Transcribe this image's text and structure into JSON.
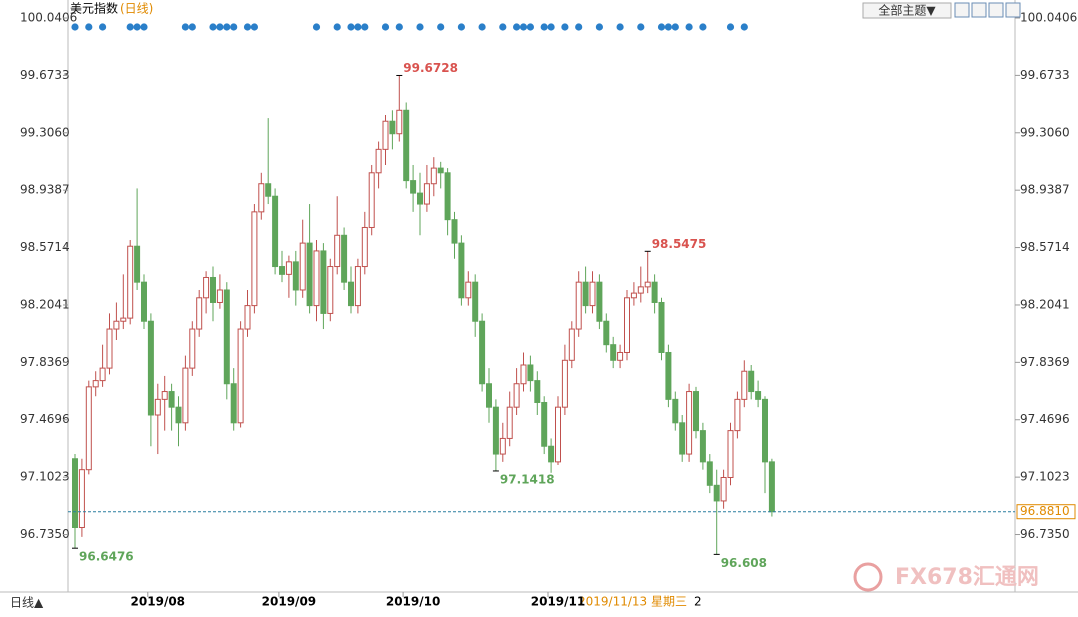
{
  "chart_data": {
    "type": "candlestick",
    "title": "美元指数",
    "subtitle": "(日线)",
    "theme_button": "全部主题▼",
    "period_button": "日线▲",
    "cursor_date": "2019/11/13 星期三",
    "cursor_extra": "2",
    "watermark": "FX678汇通网",
    "last_price_label": "96.8810",
    "up_color": "#c0504d",
    "down_color": "#5fa55a",
    "ylim": [
      96.38,
      100.0406
    ],
    "yticks": [
      {
        "value": 96.735,
        "label": "96.7350"
      },
      97.1023,
      97.4696,
      97.8369,
      98.2041,
      98.5714,
      98.9387,
      {
        "value": 99.306,
        "label": "99.3060"
      },
      99.6733,
      100.0406
    ],
    "categories": [
      null,
      null,
      null,
      null,
      null,
      null,
      null,
      null,
      null,
      null,
      null,
      null,
      "2019/08",
      null,
      null,
      null,
      null,
      null,
      null,
      null,
      null,
      null,
      null,
      null,
      null,
      null,
      null,
      null,
      null,
      null,
      null,
      "2019/09",
      null,
      null,
      null,
      null,
      null,
      null,
      null,
      null,
      null,
      null,
      null,
      null,
      null,
      null,
      null,
      null,
      null,
      "2019/10",
      null,
      null,
      null,
      null,
      null,
      null,
      null,
      null,
      null,
      null,
      null,
      null,
      null,
      null,
      null,
      null,
      null,
      null,
      null,
      null,
      "2019/11",
      null,
      null,
      null,
      null,
      null,
      null,
      null,
      null,
      null,
      null,
      null,
      null,
      null,
      null,
      null,
      null,
      null,
      null,
      null,
      null,
      null,
      null,
      null,
      null,
      null,
      null,
      null
    ],
    "candles": [
      [
        97.22,
        97.25,
        96.6476,
        96.78
      ],
      [
        96.78,
        97.22,
        96.72,
        97.15
      ],
      [
        97.15,
        97.72,
        97.12,
        97.68
      ],
      [
        97.68,
        97.78,
        97.62,
        97.72
      ],
      [
        97.72,
        97.95,
        97.68,
        97.8
      ],
      [
        97.8,
        98.15,
        97.76,
        98.05
      ],
      [
        98.05,
        98.22,
        97.98,
        98.1
      ],
      [
        98.1,
        98.4,
        98.05,
        98.12
      ],
      [
        98.12,
        98.62,
        98.08,
        98.58
      ],
      [
        98.58,
        98.95,
        98.3,
        98.35
      ],
      [
        98.35,
        98.4,
        98.05,
        98.1
      ],
      [
        98.1,
        98.15,
        97.3,
        97.5
      ],
      [
        97.5,
        97.7,
        97.25,
        97.6
      ],
      [
        97.6,
        97.75,
        97.4,
        97.65
      ],
      [
        97.65,
        97.7,
        97.4,
        97.55
      ],
      [
        97.55,
        97.62,
        97.3,
        97.45
      ],
      [
        97.45,
        97.88,
        97.4,
        97.8
      ],
      [
        97.8,
        98.1,
        97.75,
        98.05
      ],
      [
        98.05,
        98.3,
        98.0,
        98.25
      ],
      [
        98.25,
        98.42,
        98.15,
        98.38
      ],
      [
        98.38,
        98.45,
        98.1,
        98.22
      ],
      [
        98.22,
        98.4,
        98.18,
        98.3
      ],
      [
        98.3,
        98.35,
        97.6,
        97.7
      ],
      [
        97.7,
        97.8,
        97.4,
        97.45
      ],
      [
        97.45,
        98.1,
        97.42,
        98.05
      ],
      [
        98.05,
        98.3,
        98.0,
        98.2
      ],
      [
        98.2,
        98.85,
        98.15,
        98.8
      ],
      [
        98.8,
        99.05,
        98.75,
        98.98
      ],
      [
        98.98,
        99.4,
        98.85,
        98.9
      ],
      [
        98.9,
        98.95,
        98.4,
        98.45
      ],
      [
        98.45,
        98.55,
        98.35,
        98.4
      ],
      [
        98.4,
        98.52,
        98.25,
        98.48
      ],
      [
        98.48,
        98.55,
        98.2,
        98.3
      ],
      [
        98.3,
        98.75,
        98.25,
        98.6
      ],
      [
        98.6,
        98.85,
        98.15,
        98.2
      ],
      [
        98.2,
        98.62,
        98.1,
        98.55
      ],
      [
        98.55,
        98.6,
        98.05,
        98.15
      ],
      [
        98.15,
        98.5,
        98.1,
        98.45
      ],
      [
        98.45,
        98.9,
        98.4,
        98.65
      ],
      [
        98.65,
        98.7,
        98.3,
        98.35
      ],
      [
        98.35,
        98.45,
        98.15,
        98.2
      ],
      [
        98.2,
        98.5,
        98.15,
        98.45
      ],
      [
        98.45,
        98.8,
        98.4,
        98.7
      ],
      [
        98.7,
        99.1,
        98.65,
        99.05
      ],
      [
        99.05,
        99.25,
        98.95,
        99.2
      ],
      [
        99.2,
        99.42,
        99.1,
        99.38
      ],
      [
        99.38,
        99.45,
        99.2,
        99.3
      ],
      [
        99.3,
        99.6728,
        99.25,
        99.45
      ],
      [
        99.45,
        99.5,
        98.95,
        99.0
      ],
      [
        99.0,
        99.1,
        98.8,
        98.92
      ],
      [
        98.92,
        99.05,
        98.65,
        98.85
      ],
      [
        98.85,
        99.1,
        98.8,
        98.98
      ],
      [
        98.98,
        99.15,
        98.9,
        99.08
      ],
      [
        99.08,
        99.12,
        98.95,
        99.05
      ],
      [
        99.05,
        99.08,
        98.65,
        98.75
      ],
      [
        98.75,
        98.8,
        98.5,
        98.6
      ],
      [
        98.6,
        98.65,
        98.2,
        98.25
      ],
      [
        98.25,
        98.42,
        98.2,
        98.35
      ],
      [
        98.35,
        98.4,
        98.0,
        98.1
      ],
      [
        98.1,
        98.15,
        97.65,
        97.7
      ],
      [
        97.7,
        97.8,
        97.45,
        97.55
      ],
      [
        97.55,
        97.6,
        97.1418,
        97.25
      ],
      [
        97.25,
        97.45,
        97.2,
        97.35
      ],
      [
        97.35,
        97.65,
        97.3,
        97.55
      ],
      [
        97.55,
        97.8,
        97.5,
        97.7
      ],
      [
        97.7,
        97.9,
        97.65,
        97.82
      ],
      [
        97.82,
        97.88,
        97.65,
        97.72
      ],
      [
        97.72,
        97.78,
        97.5,
        97.58
      ],
      [
        97.58,
        97.62,
        97.25,
        97.3
      ],
      [
        97.3,
        97.35,
        97.13,
        97.2
      ],
      [
        97.2,
        97.62,
        97.18,
        97.55
      ],
      [
        97.55,
        97.95,
        97.5,
        97.85
      ],
      [
        97.85,
        98.1,
        97.8,
        98.05
      ],
      [
        98.05,
        98.42,
        98.0,
        98.35
      ],
      [
        98.35,
        98.45,
        98.15,
        98.2
      ],
      [
        98.2,
        98.42,
        98.15,
        98.35
      ],
      [
        98.35,
        98.4,
        98.05,
        98.1
      ],
      [
        98.1,
        98.15,
        97.9,
        97.95
      ],
      [
        97.95,
        98.0,
        97.8,
        97.85
      ],
      [
        97.85,
        97.95,
        97.8,
        97.9
      ],
      [
        97.9,
        98.3,
        97.85,
        98.25
      ],
      [
        98.25,
        98.35,
        98.2,
        98.28
      ],
      [
        98.28,
        98.45,
        98.22,
        98.32
      ],
      [
        98.32,
        98.5475,
        98.28,
        98.35
      ],
      [
        98.35,
        98.4,
        98.15,
        98.22
      ],
      [
        98.22,
        98.25,
        97.85,
        97.9
      ],
      [
        97.9,
        97.95,
        97.55,
        97.6
      ],
      [
        97.6,
        97.65,
        97.4,
        97.45
      ],
      [
        97.45,
        97.5,
        97.2,
        97.25
      ],
      [
        97.25,
        97.7,
        97.2,
        97.65
      ],
      [
        97.65,
        97.68,
        97.35,
        97.4
      ],
      [
        97.4,
        97.45,
        97.15,
        97.2
      ],
      [
        97.2,
        97.25,
        97.0,
        97.05
      ],
      [
        97.05,
        97.15,
        96.608,
        96.95
      ],
      [
        96.95,
        97.15,
        96.9,
        97.1
      ],
      [
        97.1,
        97.45,
        97.05,
        97.4
      ],
      [
        97.4,
        97.65,
        97.35,
        97.6
      ],
      [
        97.6,
        97.85,
        97.55,
        97.78
      ],
      [
        97.78,
        97.82,
        97.6,
        97.65
      ],
      [
        97.65,
        97.72,
        97.55,
        97.6
      ],
      [
        97.6,
        97.62,
        97.0,
        97.2
      ],
      [
        97.2,
        97.22,
        96.85,
        96.881
      ]
    ]
  }
}
